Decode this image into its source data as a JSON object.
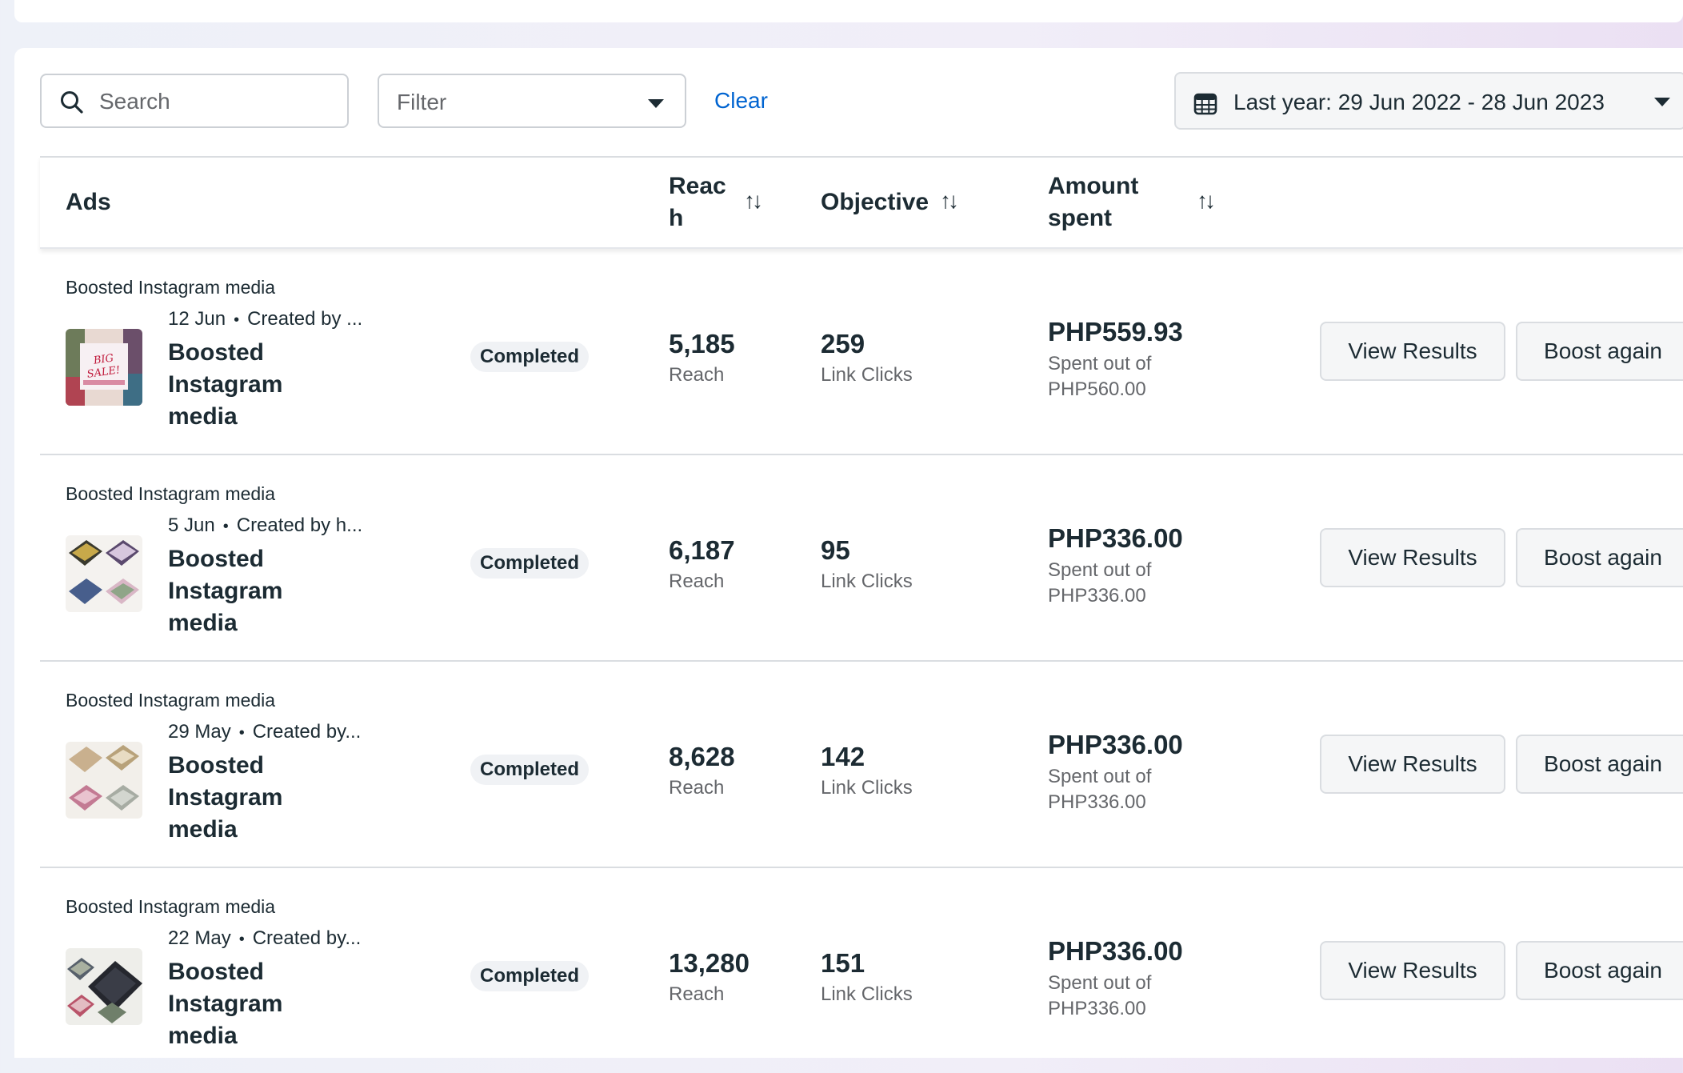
{
  "toolbar": {
    "search_placeholder": "Search",
    "filter_placeholder": "Filter",
    "clear_label": "Clear",
    "date_range_label": "Last year: 29 Jun 2022 - 28 Jun 2023"
  },
  "table": {
    "headers": {
      "ads": "Ads",
      "reach_line1": "Reac",
      "reach_line2": "h",
      "objective": "Objective",
      "amount_line1": "Amount",
      "amount_line2": "spent",
      "sort_symbol": "↑↓"
    },
    "rows": [
      {
        "type": "Boosted Instagram media",
        "date": "12 Jun",
        "created": "Created by ...",
        "name_lines": [
          "Boosted",
          "Instagram",
          "media"
        ],
        "status": "Completed",
        "reach": "5,185",
        "reach_label": "Reach",
        "objective_value": "259",
        "objective_label": "Link Clicks",
        "amount": "PHP559.93",
        "amount_sub1": "Spent out of",
        "amount_sub2": "PHP560.00",
        "view_label": "View Results",
        "boost_label": "Boost again",
        "thumb_text": "BIG SALE!"
      },
      {
        "type": "Boosted Instagram media",
        "date": "5 Jun",
        "created": "Created by h...",
        "name_lines": [
          "Boosted",
          "Instagram",
          "media"
        ],
        "status": "Completed",
        "reach": "6,187",
        "reach_label": "Reach",
        "objective_value": "95",
        "objective_label": "Link Clicks",
        "amount": "PHP336.00",
        "amount_sub1": "Spent out of",
        "amount_sub2": "PHP336.00",
        "view_label": "View Results",
        "boost_label": "Boost again"
      },
      {
        "type": "Boosted Instagram media",
        "date": "29 May",
        "created": "Created by...",
        "name_lines": [
          "Boosted",
          "Instagram",
          "media"
        ],
        "status": "Completed",
        "reach": "8,628",
        "reach_label": "Reach",
        "objective_value": "142",
        "objective_label": "Link Clicks",
        "amount": "PHP336.00",
        "amount_sub1": "Spent out of",
        "amount_sub2": "PHP336.00",
        "view_label": "View Results",
        "boost_label": "Boost again"
      },
      {
        "type": "Boosted Instagram media",
        "date": "22 May",
        "created": "Created by...",
        "name_lines": [
          "Boosted",
          "Instagram",
          "media"
        ],
        "status": "Completed",
        "reach": "13,280",
        "reach_label": "Reach",
        "objective_value": "151",
        "objective_label": "Link Clicks",
        "amount": "PHP336.00",
        "amount_sub1": "Spent out of",
        "amount_sub2": "PHP336.00",
        "view_label": "View Results",
        "boost_label": "Boost again"
      }
    ]
  }
}
